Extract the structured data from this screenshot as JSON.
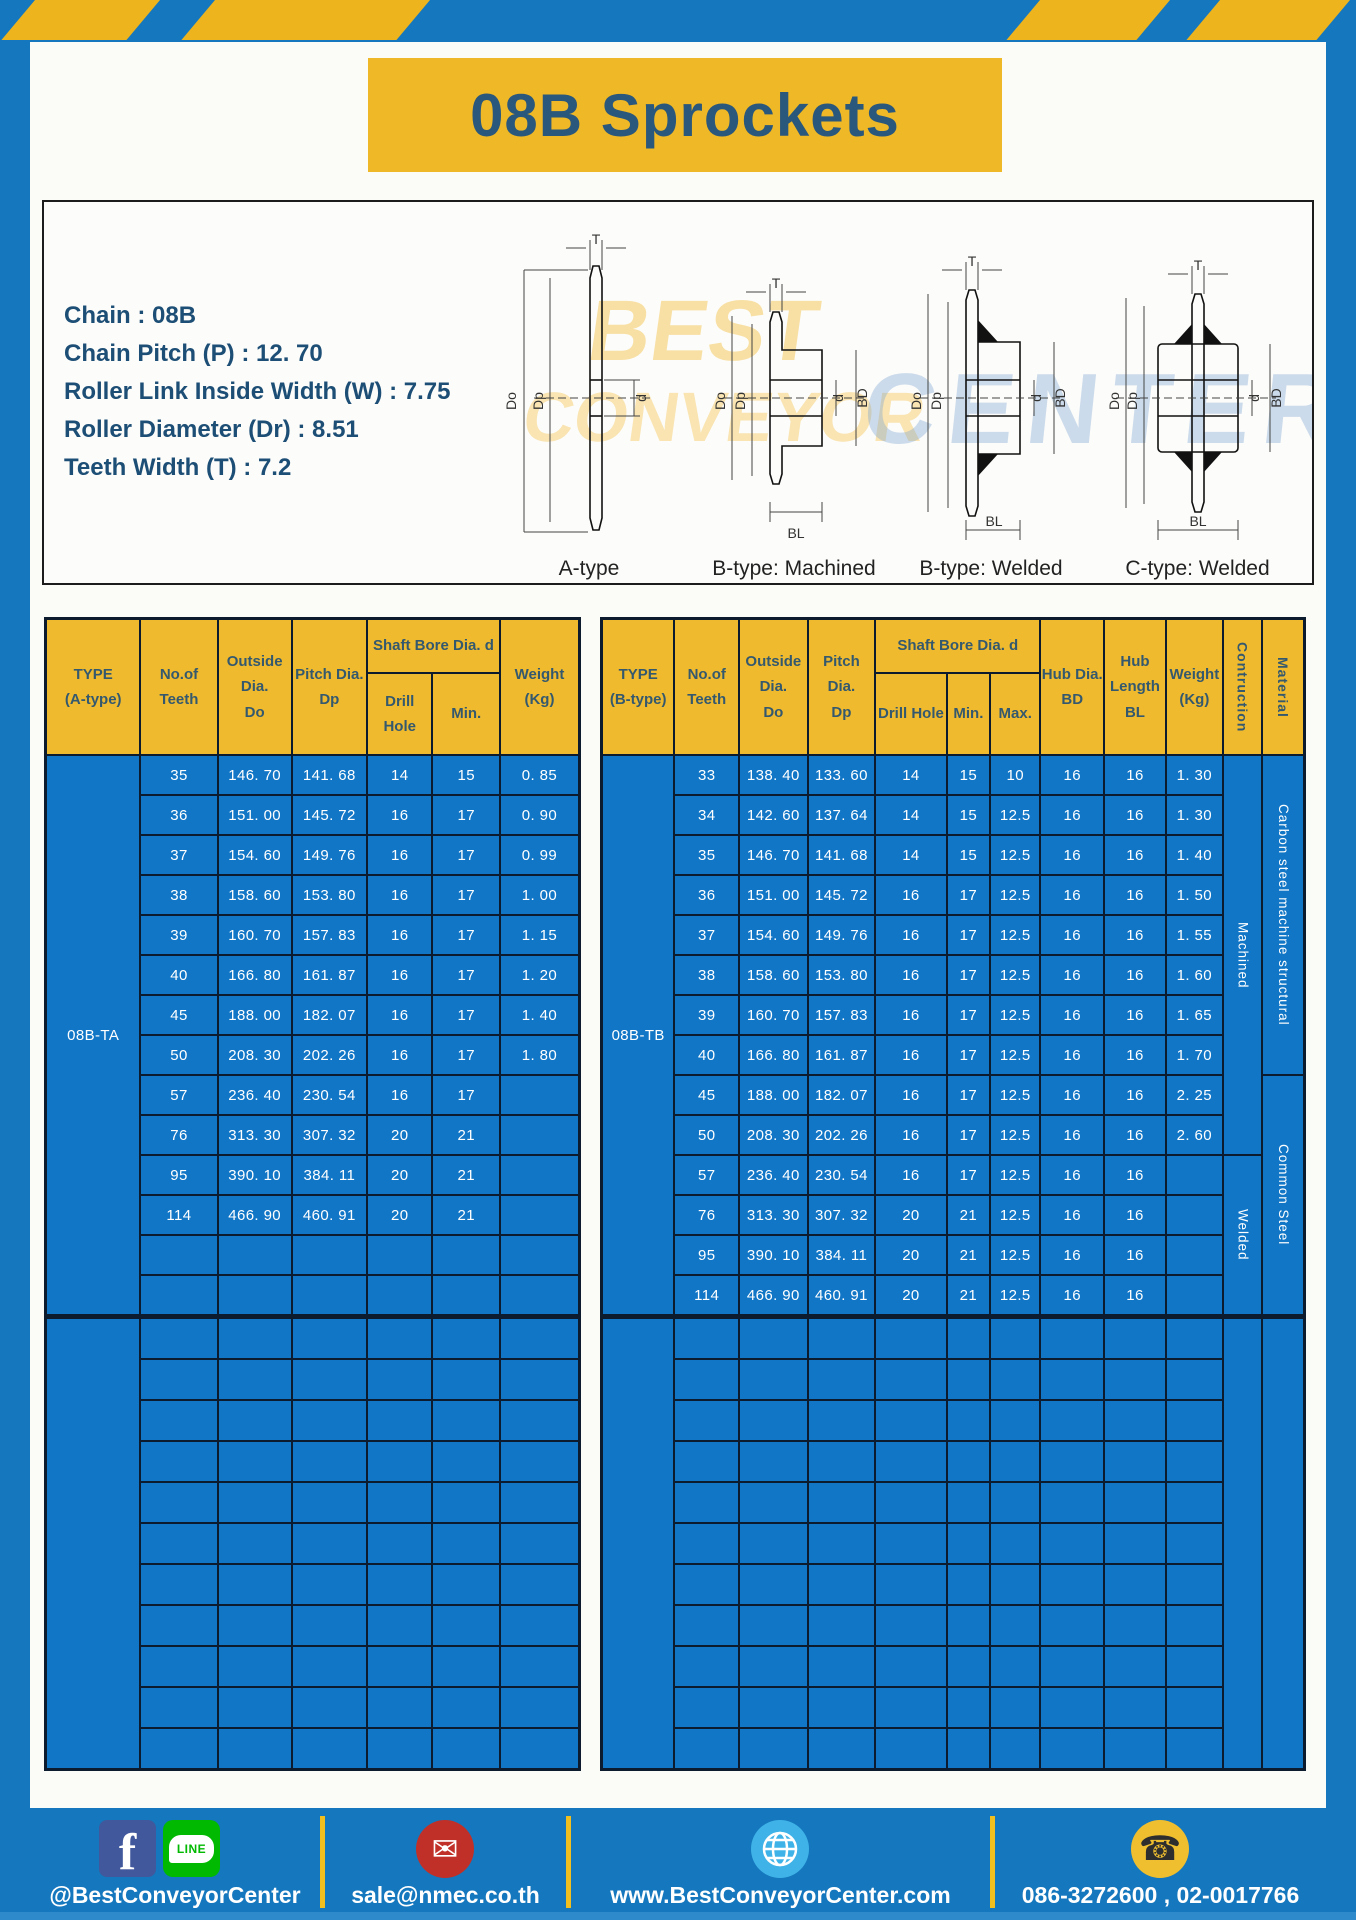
{
  "title": "08B Sprockets",
  "specs": [
    "Chain : 08B",
    "Chain Pitch (P) : 12. 70",
    "Roller Link Inside Width (W) : 7.75",
    "Roller Diameter (Dr) : 8.51",
    "Teeth Width (T) : 7.2"
  ],
  "watermark": {
    "line1": "BEST",
    "line2": "CONVEYOR",
    "line3": "CENTER"
  },
  "diagram": {
    "types": [
      "A-type",
      "B-type: Machined",
      "B-type: Welded",
      "C-type: Welded"
    ],
    "dims": {
      "t": "T",
      "do": "Do",
      "dp": "Dp",
      "d": "d",
      "bd": "BD",
      "bl": "BL"
    }
  },
  "table_a": {
    "header": {
      "type": [
        "TYPE",
        "(A-type)"
      ],
      "teeth": [
        "No.of",
        "Teeth"
      ],
      "outside": [
        "Outside",
        "Dia.",
        "Do"
      ],
      "pitch": [
        "Pitch Dia.",
        "Dp"
      ],
      "shaft": "Shaft Bore Dia. d",
      "drill": "Drill Hole",
      "min": "Min.",
      "weight": [
        "Weight",
        "(Kg)"
      ]
    },
    "type_label": "08B-TA",
    "rows": [
      {
        "teeth": "35",
        "do": "146. 70",
        "dp": "141. 68",
        "drill": "14",
        "min": "15",
        "weight": "0. 85"
      },
      {
        "teeth": "36",
        "do": "151. 00",
        "dp": "145. 72",
        "drill": "16",
        "min": "17",
        "weight": "0. 90"
      },
      {
        "teeth": "37",
        "do": "154. 60",
        "dp": "149. 76",
        "drill": "16",
        "min": "17",
        "weight": "0. 99"
      },
      {
        "teeth": "38",
        "do": "158. 60",
        "dp": "153. 80",
        "drill": "16",
        "min": "17",
        "weight": "1. 00"
      },
      {
        "teeth": "39",
        "do": "160. 70",
        "dp": "157. 83",
        "drill": "16",
        "min": "17",
        "weight": "1. 15"
      },
      {
        "teeth": "40",
        "do": "166. 80",
        "dp": "161. 87",
        "drill": "16",
        "min": "17",
        "weight": "1. 20"
      },
      {
        "teeth": "45",
        "do": "188. 00",
        "dp": "182. 07",
        "drill": "16",
        "min": "17",
        "weight": "1. 40"
      },
      {
        "teeth": "50",
        "do": "208. 30",
        "dp": "202. 26",
        "drill": "16",
        "min": "17",
        "weight": "1. 80"
      },
      {
        "teeth": "57",
        "do": "236. 40",
        "dp": "230. 54",
        "drill": "16",
        "min": "17",
        "weight": ""
      },
      {
        "teeth": "76",
        "do": "313. 30",
        "dp": "307. 32",
        "drill": "20",
        "min": "21",
        "weight": ""
      },
      {
        "teeth": "95",
        "do": "390. 10",
        "dp": "384. 11",
        "drill": "20",
        "min": "21",
        "weight": ""
      },
      {
        "teeth": "114",
        "do": "466. 90",
        "dp": "460. 91",
        "drill": "20",
        "min": "21",
        "weight": ""
      }
    ]
  },
  "table_b": {
    "header": {
      "type": [
        "TYPE",
        "(B-type)"
      ],
      "teeth": [
        "No.of",
        "Teeth"
      ],
      "outside": [
        "Outside",
        "Dia.",
        "Do"
      ],
      "pitch": [
        "Pitch Dia.",
        "Dp"
      ],
      "shaft": "Shaft Bore Dia. d",
      "drill": "Drill Hole",
      "min": "Min.",
      "max": "Max.",
      "hub_dia": [
        "Hub Dia.",
        "BD"
      ],
      "hub_len": [
        "Hub",
        "Length",
        "BL"
      ],
      "weight": [
        "Weight",
        "(Kg)"
      ],
      "construction": "Contruction",
      "material": "Material"
    },
    "type_label": "08B-TB",
    "rows": [
      {
        "teeth": "33",
        "do": "138. 40",
        "dp": "133. 60",
        "drill": "14",
        "min": "15",
        "max": "10",
        "bd": "16",
        "bl": "16",
        "weight": "1. 30"
      },
      {
        "teeth": "34",
        "do": "142. 60",
        "dp": "137. 64",
        "drill": "14",
        "min": "15",
        "max": "12.5",
        "bd": "16",
        "bl": "16",
        "weight": "1. 30"
      },
      {
        "teeth": "35",
        "do": "146. 70",
        "dp": "141. 68",
        "drill": "14",
        "min": "15",
        "max": "12.5",
        "bd": "16",
        "bl": "16",
        "weight": "1. 40"
      },
      {
        "teeth": "36",
        "do": "151. 00",
        "dp": "145. 72",
        "drill": "16",
        "min": "17",
        "max": "12.5",
        "bd": "16",
        "bl": "16",
        "weight": "1. 50"
      },
      {
        "teeth": "37",
        "do": "154. 60",
        "dp": "149. 76",
        "drill": "16",
        "min": "17",
        "max": "12.5",
        "bd": "16",
        "bl": "16",
        "weight": "1. 55"
      },
      {
        "teeth": "38",
        "do": "158. 60",
        "dp": "153. 80",
        "drill": "16",
        "min": "17",
        "max": "12.5",
        "bd": "16",
        "bl": "16",
        "weight": "1. 60"
      },
      {
        "teeth": "39",
        "do": "160. 70",
        "dp": "157. 83",
        "drill": "16",
        "min": "17",
        "max": "12.5",
        "bd": "16",
        "bl": "16",
        "weight": "1. 65"
      },
      {
        "teeth": "40",
        "do": "166. 80",
        "dp": "161. 87",
        "drill": "16",
        "min": "17",
        "max": "12.5",
        "bd": "16",
        "bl": "16",
        "weight": "1. 70"
      },
      {
        "teeth": "45",
        "do": "188. 00",
        "dp": "182. 07",
        "drill": "16",
        "min": "17",
        "max": "12.5",
        "bd": "16",
        "bl": "16",
        "weight": "2. 25"
      },
      {
        "teeth": "50",
        "do": "208. 30",
        "dp": "202. 26",
        "drill": "16",
        "min": "17",
        "max": "12.5",
        "bd": "16",
        "bl": "16",
        "weight": "2. 60"
      },
      {
        "teeth": "57",
        "do": "236. 40",
        "dp": "230. 54",
        "drill": "16",
        "min": "17",
        "max": "12.5",
        "bd": "16",
        "bl": "16",
        "weight": ""
      },
      {
        "teeth": "76",
        "do": "313. 30",
        "dp": "307. 32",
        "drill": "20",
        "min": "21",
        "max": "12.5",
        "bd": "16",
        "bl": "16",
        "weight": ""
      },
      {
        "teeth": "95",
        "do": "390. 10",
        "dp": "384. 11",
        "drill": "20",
        "min": "21",
        "max": "12.5",
        "bd": "16",
        "bl": "16",
        "weight": ""
      },
      {
        "teeth": "114",
        "do": "466. 90",
        "dp": "460. 91",
        "drill": "20",
        "min": "21",
        "max": "12.5",
        "bd": "16",
        "bl": "16",
        "weight": ""
      }
    ],
    "construction": {
      "machined": "Machined",
      "welded": "Welded"
    },
    "material": {
      "carbon": "Carbon steel  machine structural",
      "common": "Common Steel"
    }
  },
  "footer": {
    "social": "@BestConveyorCenter",
    "line_badge": "LINE",
    "email": "sale@nmec.co.th",
    "website": "www.BestConveyorCenter.com",
    "phone": "086-3272600 , 02-0017766"
  },
  "colors": {
    "frame_blue": "#1577bd",
    "stripe_yellow": "#eeb41e",
    "banner_yellow": "#efb827",
    "header_yellow": "#f0ba2e",
    "cell_blue": "#1176c6",
    "border_dark": "#0d1b2e",
    "navy_text": "#1d4e75",
    "title_navy": "#2a577c",
    "footer_divider": "#f2c01e"
  }
}
